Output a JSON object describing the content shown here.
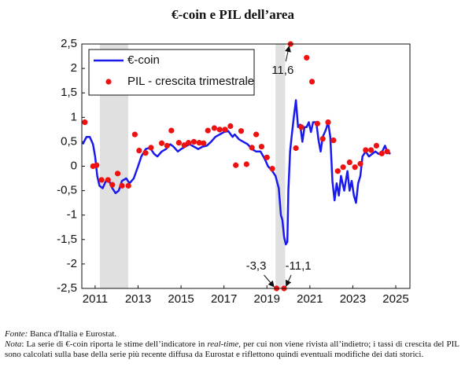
{
  "chart_data": {
    "type": "line",
    "title": "€-coin e PIL dell’area",
    "xlim": [
      2010.38,
      2025.66
    ],
    "xticks": [
      2011,
      2013,
      2015,
      2017,
      2019,
      2021,
      2023,
      2025
    ],
    "ylim": [
      -2.5,
      2.5
    ],
    "yticks": [
      {
        "value": 2.5,
        "label": "2,5"
      },
      2,
      {
        "value": 1.5,
        "label": "1,5"
      },
      1,
      {
        "value": 0.5,
        "label": "0,5"
      },
      0,
      {
        "value": -0.5,
        "label": "-0,5"
      },
      -1,
      {
        "value": -1.5,
        "label": "-1,5"
      },
      -2,
      {
        "value": -2.5,
        "label": "-2,5"
      }
    ],
    "grid": false,
    "legend": "upper left",
    "shaded_periods": [
      [
        2011.22,
        2012.54
      ],
      [
        2019.4,
        2019.85
      ]
    ],
    "shade_color": "#e0e0e0",
    "series": [
      {
        "name": "€-coin",
        "type": "line",
        "color": "#1a1aee",
        "x": [
          2010.42,
          2010.6,
          2010.75,
          2010.9,
          2011.0,
          2011.1,
          2011.2,
          2011.35,
          2011.5,
          2011.65,
          2011.8,
          2011.95,
          2012.1,
          2012.25,
          2012.45,
          2012.6,
          2012.8,
          2013.0,
          2013.15,
          2013.35,
          2013.55,
          2013.75,
          2013.9,
          2014.1,
          2014.3,
          2014.5,
          2014.65,
          2014.85,
          2015.0,
          2015.2,
          2015.4,
          2015.6,
          2015.8,
          2016.0,
          2016.2,
          2016.4,
          2016.6,
          2016.8,
          2017.0,
          2017.2,
          2017.4,
          2017.5,
          2017.7,
          2017.9,
          2018.1,
          2018.3,
          2018.5,
          2018.7,
          2018.9,
          2019.05,
          2019.15,
          2019.25,
          2019.4,
          2019.55,
          2019.65,
          2019.72,
          2019.8,
          2019.88,
          2019.95,
          2020.0,
          2020.08,
          2020.15,
          2020.25,
          2020.35,
          2020.45,
          2020.55,
          2020.65,
          2020.75,
          2020.85,
          2020.95,
          2021.05,
          2021.15,
          2021.3,
          2021.4,
          2021.5,
          2021.6,
          2021.75,
          2021.85,
          2021.95,
          2022.05,
          2022.15,
          2022.25,
          2022.35,
          2022.45,
          2022.6,
          2022.75,
          2022.85,
          2022.95,
          2023.05,
          2023.15,
          2023.25,
          2023.35,
          2023.45,
          2023.6,
          2023.75,
          2023.9,
          2024.05,
          2024.2,
          2024.35,
          2024.5,
          2024.6,
          2024.75
        ],
        "values": [
          0.45,
          0.6,
          0.6,
          0.45,
          0.2,
          -0.2,
          -0.4,
          -0.45,
          -0.3,
          -0.3,
          -0.45,
          -0.55,
          -0.5,
          -0.3,
          -0.25,
          -0.35,
          -0.25,
          0.0,
          0.2,
          0.35,
          0.38,
          0.25,
          0.2,
          0.3,
          0.35,
          0.45,
          0.4,
          0.3,
          0.35,
          0.4,
          0.45,
          0.4,
          0.35,
          0.4,
          0.42,
          0.5,
          0.6,
          0.65,
          0.7,
          0.72,
          0.6,
          0.65,
          0.55,
          0.5,
          0.45,
          0.35,
          0.3,
          0.3,
          0.15,
          0.0,
          -0.05,
          -0.1,
          -0.2,
          -0.45,
          -1.0,
          -1.1,
          -1.45,
          -1.6,
          -1.55,
          -0.5,
          0.3,
          0.6,
          1.0,
          1.35,
          0.8,
          0.85,
          0.5,
          0.8,
          0.8,
          0.9,
          0.7,
          0.9,
          0.9,
          0.55,
          0.3,
          0.6,
          0.75,
          0.9,
          0.6,
          -0.3,
          -0.7,
          -0.35,
          -0.6,
          -0.2,
          -0.5,
          -0.1,
          -0.5,
          -0.3,
          -0.6,
          -0.75,
          -0.35,
          -0.2,
          0.2,
          0.3,
          0.2,
          0.25,
          0.3,
          0.25,
          0.28,
          0.42,
          0.3,
          0.25
        ]
      },
      {
        "name": "PIL - crescita trimestrale",
        "type": "scatter",
        "color": "#ee1111",
        "x": [
          2010.52,
          2010.9,
          2011.07,
          2011.3,
          2011.6,
          2011.8,
          2012.05,
          2012.25,
          2012.55,
          2012.85,
          2013.05,
          2013.35,
          2013.6,
          2014.1,
          2014.35,
          2014.55,
          2014.9,
          2015.15,
          2015.35,
          2015.6,
          2015.85,
          2016.05,
          2016.25,
          2016.55,
          2016.8,
          2017.05,
          2017.3,
          2017.55,
          2017.8,
          2018.05,
          2018.3,
          2018.5,
          2018.75,
          2019.0,
          2019.25,
          2019.45,
          2019.8,
          2020.1,
          2020.35,
          2020.6,
          2020.85,
          2021.1,
          2021.35,
          2021.6,
          2021.85,
          2022.1,
          2022.3,
          2022.55,
          2022.85,
          2023.1,
          2023.35,
          2023.6,
          2023.85,
          2024.1,
          2024.35,
          2024.6
        ],
        "values": [
          0.9,
          0.0,
          0.02,
          -0.28,
          -0.28,
          -0.38,
          -0.15,
          -0.4,
          -0.4,
          0.65,
          0.32,
          0.27,
          0.38,
          0.47,
          0.42,
          0.73,
          0.48,
          0.43,
          0.48,
          0.5,
          0.48,
          0.47,
          0.73,
          0.78,
          0.75,
          0.75,
          0.82,
          0.02,
          0.72,
          0.04,
          0.38,
          0.65,
          0.4,
          0.18,
          -0.05,
          -3.3,
          -11.1,
          11.6,
          0.37,
          0.8,
          2.22,
          1.73,
          0.87,
          0.56,
          0.9,
          0.53,
          -0.1,
          -0.02,
          0.08,
          -0.02,
          0.05,
          0.33,
          0.33,
          0.42,
          0.26,
          0.3
        ],
        "value_labels": [
          null,
          null,
          null,
          null,
          null,
          null,
          null,
          null,
          null,
          null,
          null,
          null,
          null,
          null,
          null,
          null,
          null,
          null,
          null,
          null,
          null,
          null,
          null,
          null,
          null,
          null,
          null,
          null,
          null,
          null,
          null,
          null,
          null,
          null,
          null,
          "-3,3",
          "-11,1",
          "11,6",
          null,
          null,
          null,
          null,
          null,
          null,
          null,
          null,
          null,
          null,
          null,
          null,
          null,
          null,
          null,
          null,
          null,
          null
        ]
      }
    ]
  },
  "notes": {
    "source_label": "Fonte:",
    "source": " Banca d'Italia e Eurostat.",
    "note_label": "Nota",
    "note_parts": [
      ": La serie di €-coin riporta le stime dell’indicatore in ",
      "real-time",
      ", per cui non viene rivista all’indietro; i tassi di crescita del PIL sono calcolati sulla base della serie più recente diffusa da Eurostat e riflettono quindi eventuali modifiche dei dati storici."
    ]
  }
}
